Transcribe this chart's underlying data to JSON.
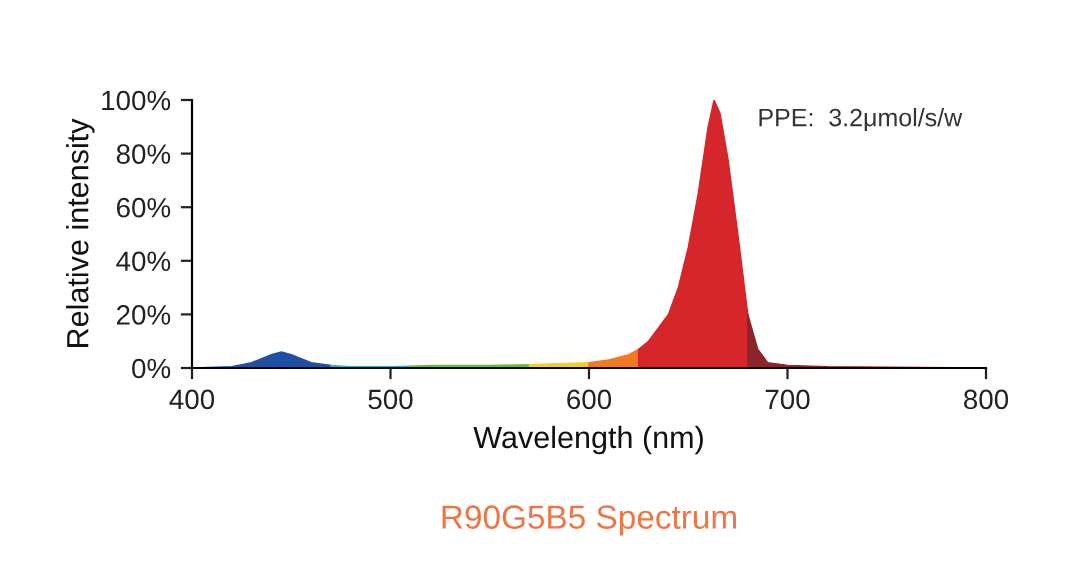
{
  "chart_data": {
    "type": "area",
    "title": "R90G5B5 Spectrum",
    "xlabel": "Wavelength (nm)",
    "ylabel": "Relative intensity",
    "annotations": [
      "PPE:  3.2μmol/s/w"
    ],
    "series": [
      {
        "color": "#1f4fa3",
        "x": [
          400,
          420,
          430,
          440,
          445,
          450,
          460,
          470
        ],
        "values": [
          0,
          0.5,
          2,
          5,
          6,
          5,
          2,
          1
        ]
      },
      {
        "color": "#3aaec0",
        "x": [
          470,
          480,
          500,
          510
        ],
        "values": [
          1,
          0.5,
          0.5,
          0.7
        ]
      },
      {
        "color": "#6cb83a",
        "x": [
          510,
          520,
          550,
          570
        ],
        "values": [
          0.7,
          1,
          1,
          1.2
        ]
      },
      {
        "color": "#f0d020",
        "x": [
          570,
          580,
          600
        ],
        "values": [
          1.2,
          1.5,
          2
        ]
      },
      {
        "color": "#f07a20",
        "x": [
          600,
          610,
          620,
          625
        ],
        "values": [
          2,
          3,
          5,
          7
        ]
      },
      {
        "color": "#d4262b",
        "x": [
          625,
          630,
          640,
          645,
          650,
          655,
          660,
          663,
          666,
          670,
          675,
          680
        ],
        "values": [
          7,
          10,
          20,
          30,
          45,
          65,
          90,
          100,
          95,
          78,
          50,
          20
        ]
      },
      {
        "color": "#8a262a",
        "x": [
          680,
          685,
          690,
          700,
          720,
          750,
          800
        ],
        "values": [
          20,
          7,
          2,
          1,
          0.5,
          0.3,
          0
        ]
      }
    ],
    "xlim": [
      400,
      800
    ],
    "ylim": [
      0,
      100
    ],
    "xticks": [
      400,
      500,
      600,
      700,
      800
    ],
    "yticks": [
      {
        "value": 0,
        "label": "0%"
      },
      {
        "value": 20,
        "label": "20%"
      },
      {
        "value": 40,
        "label": "40%"
      },
      {
        "value": 60,
        "label": "60%"
      },
      {
        "value": 80,
        "label": "80%"
      },
      {
        "value": 100,
        "label": "100%"
      }
    ],
    "grid": false
  }
}
